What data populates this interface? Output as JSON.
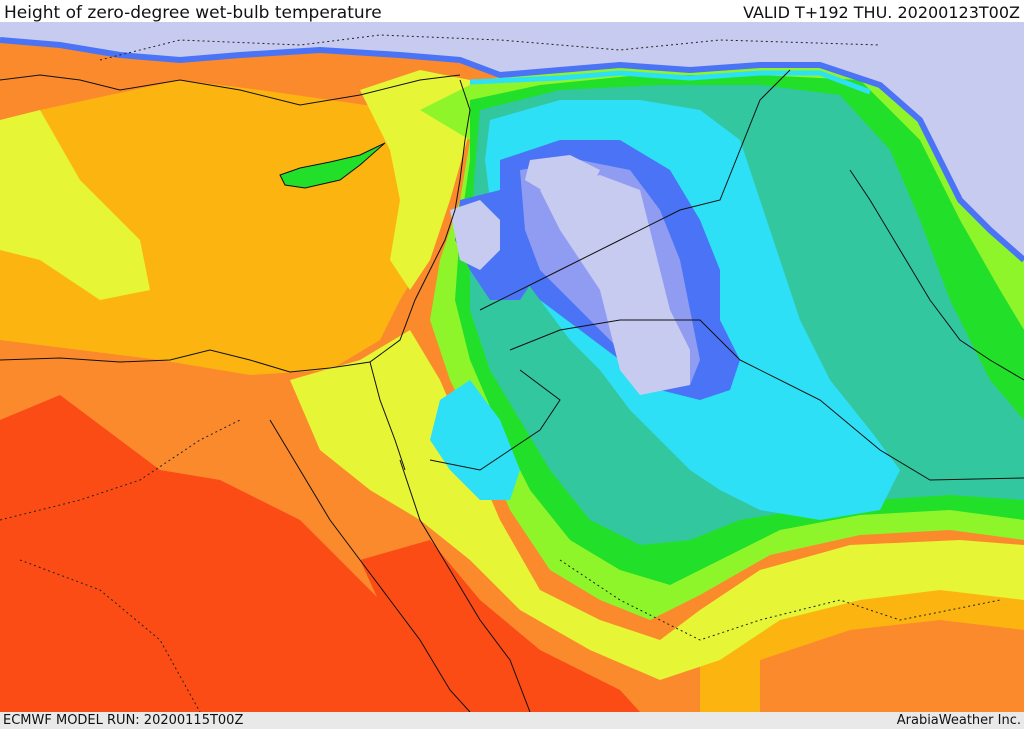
{
  "header": {
    "title": "Height of zero-degree wet-bulb temperature",
    "valid": "VALID T+192 THU. 20200123T00Z"
  },
  "footer": {
    "model_run": "ECMWF MODEL RUN: 20200115T00Z",
    "credit": "ArabiaWeather Inc."
  },
  "palette": {
    "lavender": "#c8cbf0",
    "light-blue": "#8f9cf2",
    "blue": "#4a73f5",
    "cyan": "#2ee0f5",
    "teal": "#33c7a0",
    "green": "#22e02a",
    "light-green": "#8ef52a",
    "yellow": "#e6f535",
    "gold": "#fcb510",
    "orange": "#fb8a2d",
    "red-orange": "#fb4c16"
  }
}
